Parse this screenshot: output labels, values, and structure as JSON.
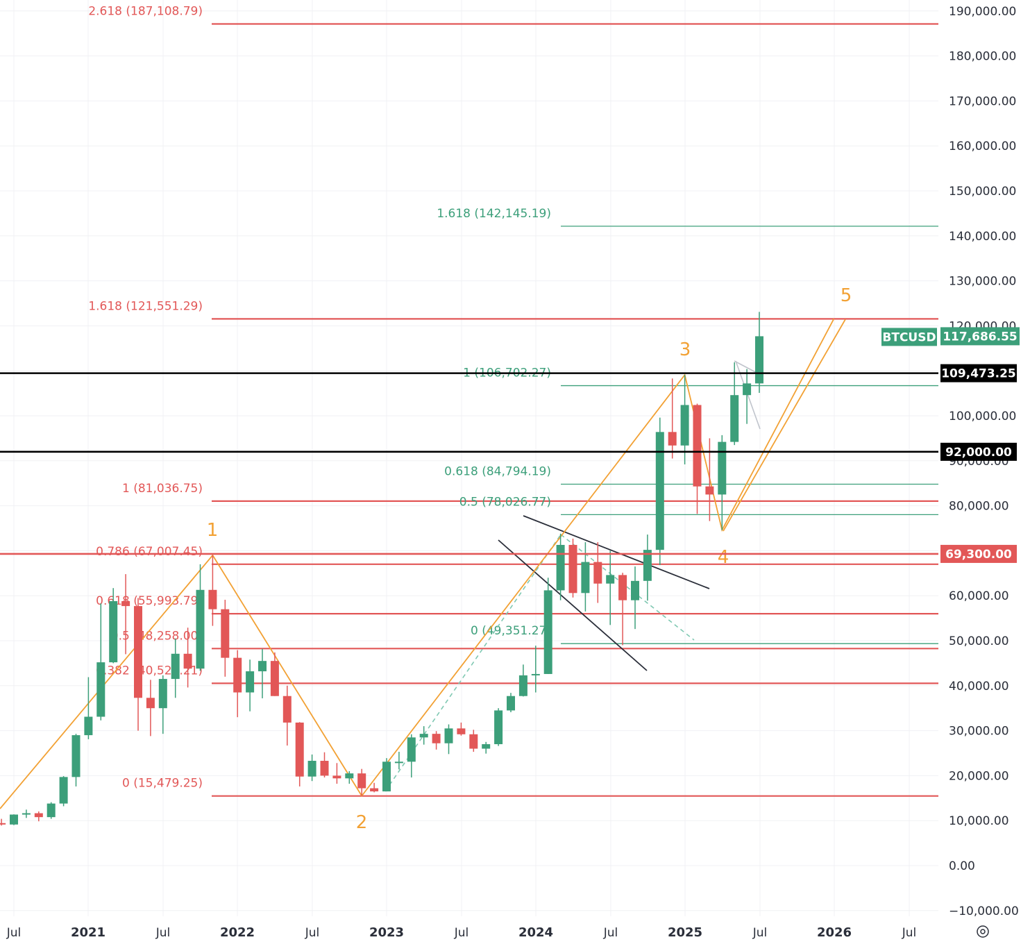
{
  "chart_data": {
    "type": "candlestick",
    "symbol": "BTCUSD",
    "last_price": "117,686.55",
    "y_axis": {
      "range": [
        -10000,
        190000
      ],
      "ticks": [
        "190,000.00",
        "180,000.00",
        "170,000.00",
        "160,000.00",
        "150,000.00",
        "140,000.00",
        "130,000.00",
        "120,000.00",
        "110,000.00",
        "100,000.00",
        "90,000.00",
        "80,000.00",
        "70,000.00",
        "60,000.00",
        "50,000.00",
        "40,000.00",
        "30,000.00",
        "20,000.00",
        "10,000.00",
        "0.00",
        "−10,000.00"
      ]
    },
    "x_axis": {
      "ticks": [
        {
          "label": "Jul",
          "bold": false
        },
        {
          "label": "2021",
          "bold": true
        },
        {
          "label": "Jul",
          "bold": false
        },
        {
          "label": "2022",
          "bold": true
        },
        {
          "label": "Jul",
          "bold": false
        },
        {
          "label": "2023",
          "bold": true
        },
        {
          "label": "Jul",
          "bold": false
        },
        {
          "label": "2024",
          "bold": true
        },
        {
          "label": "Jul",
          "bold": false
        },
        {
          "label": "2025",
          "bold": true
        },
        {
          "label": "Jul",
          "bold": false
        },
        {
          "label": "2026",
          "bold": true
        },
        {
          "label": "Jul",
          "bold": false
        }
      ]
    },
    "grid": true,
    "colors": {
      "up": "#3c9f7a",
      "down": "#e25757",
      "wave": "#f2a134",
      "fib_red": "#e25757",
      "fib_green": "#3c9f7a",
      "level": "#000000"
    },
    "candles": [
      {
        "date": "2020-06",
        "o": 9450,
        "h": 10400,
        "l": 8900,
        "c": 9140
      },
      {
        "date": "2020-07",
        "o": 9140,
        "h": 11400,
        "l": 9000,
        "c": 11350
      },
      {
        "date": "2020-08",
        "o": 11350,
        "h": 12450,
        "l": 10600,
        "c": 11650
      },
      {
        "date": "2020-09",
        "o": 11650,
        "h": 12050,
        "l": 9850,
        "c": 10780
      },
      {
        "date": "2020-10",
        "o": 10780,
        "h": 14100,
        "l": 10400,
        "c": 13800
      },
      {
        "date": "2020-11",
        "o": 13800,
        "h": 19900,
        "l": 13200,
        "c": 19700
      },
      {
        "date": "2020-12",
        "o": 19700,
        "h": 29300,
        "l": 17600,
        "c": 29000
      },
      {
        "date": "2021-01",
        "o": 29000,
        "h": 41900,
        "l": 28100,
        "c": 33100
      },
      {
        "date": "2021-02",
        "o": 33100,
        "h": 58300,
        "l": 32300,
        "c": 45200
      },
      {
        "date": "2021-03",
        "o": 45200,
        "h": 61700,
        "l": 45000,
        "c": 58800
      },
      {
        "date": "2021-04",
        "o": 58800,
        "h": 64800,
        "l": 47000,
        "c": 57700
      },
      {
        "date": "2021-05",
        "o": 57700,
        "h": 59500,
        "l": 30000,
        "c": 37300
      },
      {
        "date": "2021-06",
        "o": 37300,
        "h": 41300,
        "l": 28800,
        "c": 35000
      },
      {
        "date": "2021-07",
        "o": 35000,
        "h": 42300,
        "l": 29300,
        "c": 41500
      },
      {
        "date": "2021-08",
        "o": 41500,
        "h": 50500,
        "l": 37300,
        "c": 47100
      },
      {
        "date": "2021-09",
        "o": 47100,
        "h": 52900,
        "l": 39600,
        "c": 43800
      },
      {
        "date": "2021-10",
        "o": 43800,
        "h": 67000,
        "l": 43300,
        "c": 61300
      },
      {
        "date": "2021-11",
        "o": 61300,
        "h": 69000,
        "l": 53300,
        "c": 57000
      },
      {
        "date": "2021-12",
        "o": 57000,
        "h": 59100,
        "l": 42000,
        "c": 46200
      },
      {
        "date": "2022-01",
        "o": 46200,
        "h": 47900,
        "l": 33000,
        "c": 38500
      },
      {
        "date": "2022-02",
        "o": 38500,
        "h": 45800,
        "l": 34300,
        "c": 43200
      },
      {
        "date": "2022-03",
        "o": 43200,
        "h": 48200,
        "l": 37200,
        "c": 45500
      },
      {
        "date": "2022-04",
        "o": 45500,
        "h": 47400,
        "l": 37700,
        "c": 37700
      },
      {
        "date": "2022-05",
        "o": 37700,
        "h": 40000,
        "l": 26700,
        "c": 31800
      },
      {
        "date": "2022-06",
        "o": 31800,
        "h": 31900,
        "l": 17600,
        "c": 19800
      },
      {
        "date": "2022-07",
        "o": 19800,
        "h": 24700,
        "l": 18800,
        "c": 23300
      },
      {
        "date": "2022-08",
        "o": 23300,
        "h": 25200,
        "l": 19600,
        "c": 20000
      },
      {
        "date": "2022-09",
        "o": 20000,
        "h": 22800,
        "l": 18200,
        "c": 19400
      },
      {
        "date": "2022-10",
        "o": 19400,
        "h": 21000,
        "l": 18200,
        "c": 20500
      },
      {
        "date": "2022-11",
        "o": 20500,
        "h": 21500,
        "l": 15500,
        "c": 17200
      },
      {
        "date": "2022-12",
        "o": 17200,
        "h": 18400,
        "l": 16300,
        "c": 16500
      },
      {
        "date": "2023-01",
        "o": 16500,
        "h": 23900,
        "l": 16500,
        "c": 23100
      },
      {
        "date": "2023-02",
        "o": 23100,
        "h": 25300,
        "l": 21400,
        "c": 23100
      },
      {
        "date": "2023-03",
        "o": 23100,
        "h": 29200,
        "l": 19600,
        "c": 28500
      },
      {
        "date": "2023-04",
        "o": 28500,
        "h": 31000,
        "l": 26900,
        "c": 29300
      },
      {
        "date": "2023-05",
        "o": 29300,
        "h": 29900,
        "l": 25800,
        "c": 27200
      },
      {
        "date": "2023-06",
        "o": 27200,
        "h": 31400,
        "l": 24800,
        "c": 30500
      },
      {
        "date": "2023-07",
        "o": 30500,
        "h": 31800,
        "l": 28900,
        "c": 29200
      },
      {
        "date": "2023-08",
        "o": 29200,
        "h": 30200,
        "l": 25300,
        "c": 26000
      },
      {
        "date": "2023-09",
        "o": 26000,
        "h": 27500,
        "l": 24900,
        "c": 27000
      },
      {
        "date": "2023-10",
        "o": 27000,
        "h": 35000,
        "l": 26600,
        "c": 34500
      },
      {
        "date": "2023-11",
        "o": 34500,
        "h": 38400,
        "l": 34100,
        "c": 37700
      },
      {
        "date": "2023-12",
        "o": 37700,
        "h": 44700,
        "l": 37600,
        "c": 42300
      },
      {
        "date": "2024-01",
        "o": 42300,
        "h": 48900,
        "l": 38500,
        "c": 42600
      },
      {
        "date": "2024-02",
        "o": 42600,
        "h": 64000,
        "l": 42600,
        "c": 61200
      },
      {
        "date": "2024-03",
        "o": 61200,
        "h": 73800,
        "l": 59000,
        "c": 71300
      },
      {
        "date": "2024-04",
        "o": 71300,
        "h": 72700,
        "l": 59600,
        "c": 60600
      },
      {
        "date": "2024-05",
        "o": 60600,
        "h": 71900,
        "l": 56500,
        "c": 67500
      },
      {
        "date": "2024-06",
        "o": 67500,
        "h": 71900,
        "l": 58400,
        "c": 62700
      },
      {
        "date": "2024-07",
        "o": 62700,
        "h": 70000,
        "l": 53500,
        "c": 64600
      },
      {
        "date": "2024-08",
        "o": 64600,
        "h": 65100,
        "l": 49000,
        "c": 59000
      },
      {
        "date": "2024-09",
        "o": 59000,
        "h": 66500,
        "l": 52600,
        "c": 63300
      },
      {
        "date": "2024-10",
        "o": 63300,
        "h": 73600,
        "l": 58900,
        "c": 70200
      },
      {
        "date": "2024-11",
        "o": 70200,
        "h": 99600,
        "l": 66800,
        "c": 96400
      },
      {
        "date": "2024-12",
        "o": 96400,
        "h": 108300,
        "l": 90500,
        "c": 93400
      },
      {
        "date": "2025-01",
        "o": 93400,
        "h": 109100,
        "l": 89200,
        "c": 102400
      },
      {
        "date": "2025-02",
        "o": 102400,
        "h": 102700,
        "l": 78200,
        "c": 84300
      },
      {
        "date": "2025-03",
        "o": 84300,
        "h": 95000,
        "l": 76600,
        "c": 82500
      },
      {
        "date": "2025-04",
        "o": 82500,
        "h": 95700,
        "l": 74600,
        "c": 94200
      },
      {
        "date": "2025-05",
        "o": 94200,
        "h": 111900,
        "l": 93500,
        "c": 104600
      },
      {
        "date": "2025-06",
        "o": 104600,
        "h": 110400,
        "l": 98200,
        "c": 107200
      },
      {
        "date": "2025-07",
        "o": 107200,
        "h": 123100,
        "l": 105100,
        "c": 117686
      }
    ],
    "fib_red": [
      {
        "label": "2.618 (187,108.79)",
        "value": 187108.79
      },
      {
        "label": "1.618 (121,551.29)",
        "value": 121551.29
      },
      {
        "label": "1 (81,036.75)",
        "value": 81036.75
      },
      {
        "label": "0.786 (67,007.45)",
        "value": 67007.45
      },
      {
        "label": "0.618 (55,993.79)",
        "value": 55993.79
      },
      {
        "label": "0.5 (48,258.00)",
        "value": 48258.0
      },
      {
        "label": "0.382 (40,523.21)",
        "value": 40523.21
      },
      {
        "label": "0 (15,479.25)",
        "value": 15479.25
      }
    ],
    "fib_green": [
      {
        "label": "1.618 (142,145.19)",
        "value": 142145.19
      },
      {
        "label": "1 (106,702.27)",
        "value": 106702.27
      },
      {
        "label": "0.618 (84,794.19)",
        "value": 84794.19
      },
      {
        "label": "0.5 (78,026.77)",
        "value": 78026.77
      },
      {
        "label": "0 (49,351.27)",
        "value": 49351.27
      }
    ],
    "horizontal_levels": [
      {
        "label": "109,473.25",
        "value": 109473.25,
        "color": "#000000"
      },
      {
        "label": "92,000.00",
        "value": 92000.0,
        "color": "#000000"
      },
      {
        "label": "69,300.00",
        "value": 69300.0,
        "color": "#e25757"
      }
    ],
    "elliott_wave": [
      {
        "label": "",
        "date": "2020-03",
        "price": 4000
      },
      {
        "label": "1",
        "date": "2021-11",
        "price": 69000
      },
      {
        "label": "2",
        "date": "2022-11",
        "price": 15500
      },
      {
        "label": "3",
        "date": "2025-01",
        "price": 109100
      },
      {
        "label": "4",
        "date": "2025-04",
        "price": 74600
      },
      {
        "label": "5",
        "date": "2026-01",
        "price": 121551
      }
    ]
  }
}
